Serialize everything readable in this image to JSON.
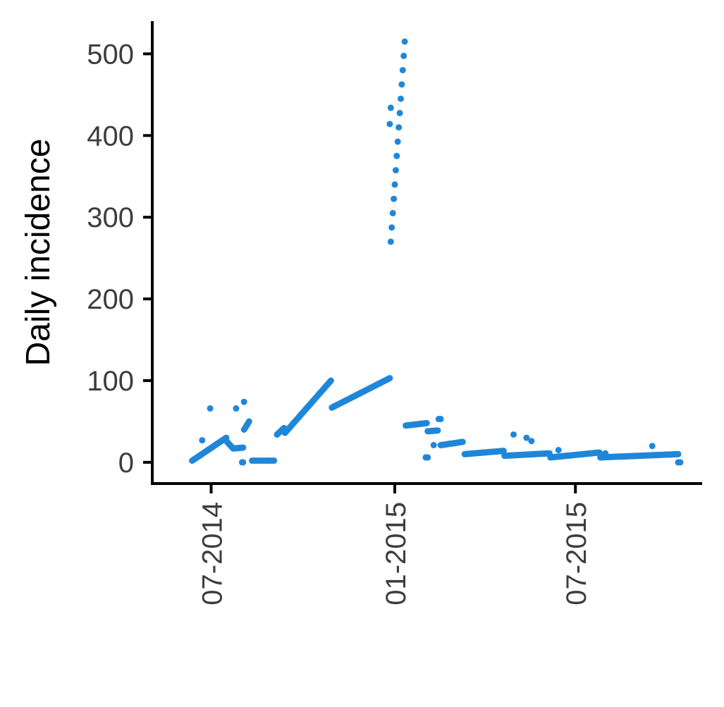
{
  "chart_data": {
    "type": "scatter",
    "title": "",
    "xlabel": "",
    "ylabel": "Daily incidence",
    "x_type": "date",
    "x_ticks": [
      {
        "date": "2014-07-01",
        "label": "07-2014"
      },
      {
        "date": "2015-01-01",
        "label": "01-2015"
      },
      {
        "date": "2015-07-01",
        "label": "07-2015"
      }
    ],
    "xlim": [
      "2014-05-03",
      "2015-11-05"
    ],
    "y_ticks": [
      0,
      100,
      200,
      300,
      400,
      500
    ],
    "ylim": [
      -26,
      540
    ],
    "grid": false,
    "legend": "none",
    "point_color": "#1f87d9",
    "axis_color": "#000000",
    "segments": [
      {
        "start": "2014-06-12",
        "end": "2014-07-16",
        "from": 2,
        "to": 30,
        "step": 1
      },
      {
        "start": "2014-07-17",
        "end": "2014-07-23",
        "from": 25,
        "to": 17,
        "step": 1
      },
      {
        "start": "2014-07-24",
        "end": "2014-08-02",
        "from": 17,
        "to": 18,
        "step": 1
      },
      {
        "start": "2014-08-03",
        "end": "2014-08-08",
        "from": 40,
        "to": 50,
        "step": 1
      },
      {
        "start": "2014-08-11",
        "end": "2014-09-03",
        "from": 2,
        "to": 2,
        "step": 2
      },
      {
        "start": "2014-09-05",
        "end": "2014-09-12",
        "from": 34,
        "to": 42,
        "step": 1
      },
      {
        "start": "2014-09-13",
        "end": "2014-10-29",
        "from": 36,
        "to": 100,
        "step": 1
      },
      {
        "start": "2014-10-30",
        "end": "2014-12-27",
        "from": 67,
        "to": 103,
        "step": 1
      },
      {
        "start": "2014-12-28",
        "end": "2015-01-11",
        "from": 270,
        "to": 515,
        "step": 1
      },
      {
        "start": "2015-01-12",
        "end": "2015-02-02",
        "from": 45,
        "to": 48,
        "step": 1
      },
      {
        "start": "2015-02-03",
        "end": "2015-02-13",
        "from": 38,
        "to": 39,
        "step": 1
      },
      {
        "start": "2015-02-16",
        "end": "2015-03-10",
        "from": 21,
        "to": 25,
        "step": 1
      },
      {
        "start": "2015-03-12",
        "end": "2015-04-20",
        "from": 10,
        "to": 14,
        "step": 1
      },
      {
        "start": "2015-04-21",
        "end": "2015-06-05",
        "from": 8,
        "to": 11,
        "step": 1
      },
      {
        "start": "2015-06-06",
        "end": "2015-07-25",
        "from": 6,
        "to": 12,
        "step": 1
      },
      {
        "start": "2015-07-26",
        "end": "2015-10-12",
        "from": 6,
        "to": 10,
        "step": 1
      }
    ],
    "points": [
      {
        "x": "2014-06-30",
        "y": 66
      },
      {
        "x": "2014-07-26",
        "y": 66
      },
      {
        "x": "2014-08-03",
        "y": 74
      },
      {
        "x": "2014-06-22",
        "y": 27
      },
      {
        "x": "2014-12-27",
        "y": 414
      },
      {
        "x": "2014-12-28",
        "y": 434
      },
      {
        "x": "2015-02-01",
        "y": 6
      },
      {
        "x": "2015-02-03",
        "y": 6
      },
      {
        "x": "2015-02-14",
        "y": 53
      },
      {
        "x": "2015-02-16",
        "y": 53
      },
      {
        "x": "2015-02-09",
        "y": 21
      },
      {
        "x": "2015-04-30",
        "y": 34
      },
      {
        "x": "2015-05-13",
        "y": 30
      },
      {
        "x": "2015-05-18",
        "y": 26
      },
      {
        "x": "2015-06-14",
        "y": 15
      },
      {
        "x": "2015-07-31",
        "y": 11
      },
      {
        "x": "2015-09-16",
        "y": 20
      },
      {
        "x": "2015-10-12",
        "y": 0
      },
      {
        "x": "2015-10-14",
        "y": 0
      },
      {
        "x": "2014-08-01",
        "y": 0
      },
      {
        "x": "2014-08-02",
        "y": 0
      }
    ]
  }
}
